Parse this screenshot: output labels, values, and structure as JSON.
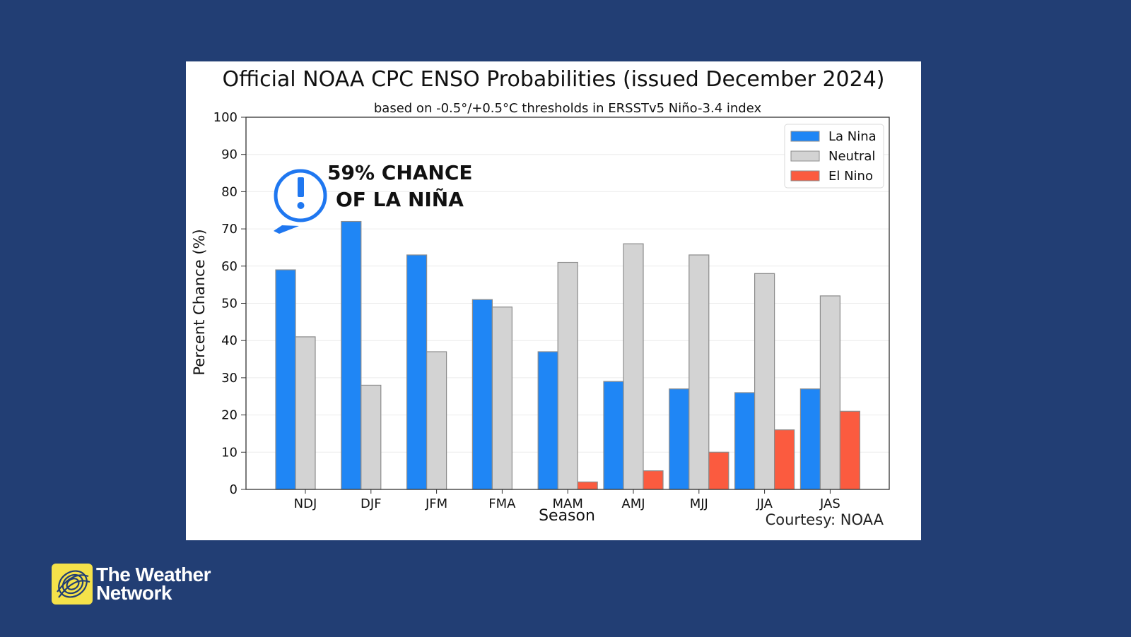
{
  "chart_data": {
    "type": "bar",
    "title": "Official NOAA CPC ENSO Probabilities (issued December 2024)",
    "subtitle": "based on -0.5°/+0.5°C thresholds in ERSSTv5 Niño-3.4 index",
    "xlabel": "Season",
    "ylabel": "Percent Chance (%)",
    "ylim": [
      0,
      100
    ],
    "yticks": [
      "0",
      "10",
      "20",
      "30",
      "40",
      "50",
      "60",
      "70",
      "80",
      "90",
      "100"
    ],
    "grid": true,
    "legend_position": "top-right",
    "categories": [
      "NDJ",
      "DJF",
      "JFM",
      "FMA",
      "MAM",
      "AMJ",
      "MJJ",
      "JJA",
      "JAS"
    ],
    "series": [
      {
        "name": "La Nina",
        "color": "#1f86f5",
        "values": [
          59,
          72,
          63,
          51,
          37,
          29,
          27,
          26,
          27
        ]
      },
      {
        "name": "Neutral",
        "color": "#d3d3d3",
        "values": [
          41,
          28,
          37,
          49,
          61,
          66,
          63,
          58,
          52
        ]
      },
      {
        "name": "El Nino",
        "color": "#fb5b3f",
        "values": [
          0,
          0,
          0,
          0,
          2,
          5,
          10,
          16,
          21
        ]
      }
    ],
    "credit": "Courtesy: NOAA"
  },
  "callout": {
    "line1": "59% CHANCE",
    "line2": "OF LA NIÑA",
    "icon": "alert-speech-bubble-icon",
    "color": "#1f77f0"
  },
  "brand": {
    "line1": "The Weather",
    "line2": "Network",
    "logo_color": "#f5e24a"
  }
}
